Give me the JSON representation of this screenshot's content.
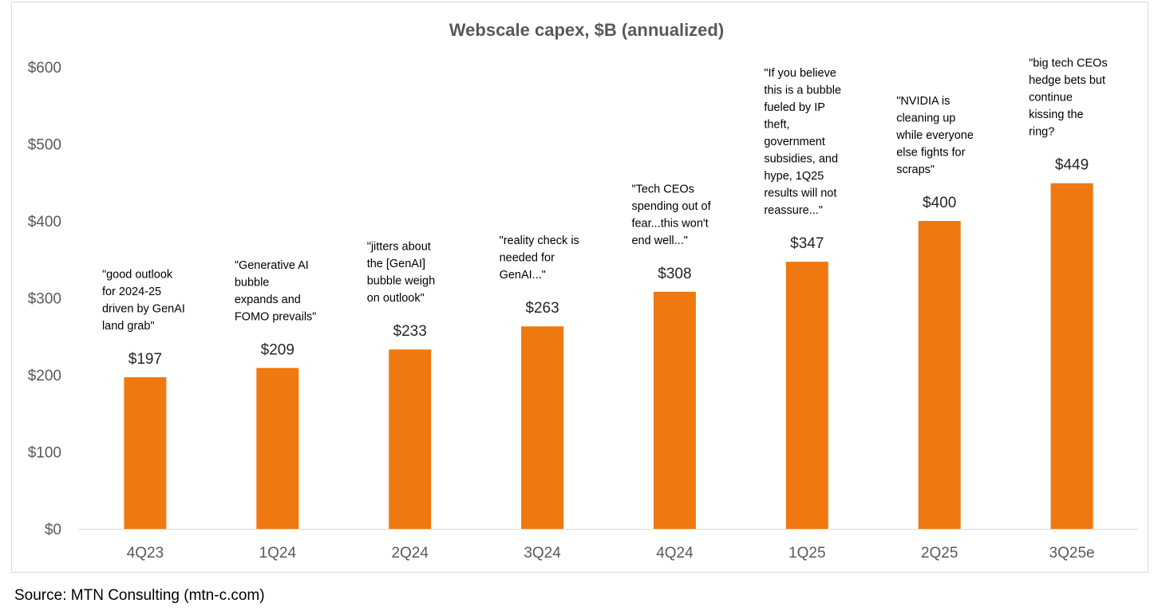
{
  "chart_data": {
    "type": "bar",
    "title": "Webscale capex, $B (annualized)",
    "categories": [
      "4Q23",
      "1Q24",
      "2Q24",
      "3Q24",
      "4Q24",
      "1Q25",
      "2Q25",
      "3Q25e"
    ],
    "values": [
      197,
      209,
      233,
      263,
      308,
      347,
      400,
      449
    ],
    "value_labels": [
      "$197",
      "$209",
      "$233",
      "$263",
      "$308",
      "$347",
      "$400",
      "$449"
    ],
    "ylim": [
      0,
      600
    ],
    "yticks": [
      0,
      100,
      200,
      300,
      400,
      500,
      600
    ],
    "ytick_labels": [
      "$0",
      "$100",
      "$200",
      "$300",
      "$400",
      "$500",
      "$600"
    ],
    "xlabel": "",
    "ylabel": "",
    "grid": false,
    "legend": "none",
    "bar_color": "#f07810",
    "annotations": [
      [
        "\"good outlook",
        "for 2024-25",
        "driven by GenAI",
        "land grab\""
      ],
      [
        "\"Generative AI",
        "bubble",
        "expands and",
        "FOMO prevails\""
      ],
      [
        "\"jitters about",
        "the [GenAI]",
        "bubble weigh",
        "on outlook\""
      ],
      [
        "\"reality check is",
        "needed for",
        "GenAI...\""
      ],
      [
        "\"Tech CEOs",
        "spending out of",
        "fear...this won't",
        "end well...\""
      ],
      [
        "\"If you believe",
        "this is a bubble",
        "fueled by IP",
        "theft,",
        "government",
        "subsidies, and",
        "hype, 1Q25",
        "results will not",
        "reassure...\""
      ],
      [
        "\"NVIDIA is",
        "cleaning up",
        "while everyone",
        "else fights for",
        "scraps\""
      ],
      [
        "\"big tech CEOs",
        "hedge bets but",
        "continue",
        "kissing the",
        "ring?"
      ]
    ]
  },
  "source": "Source: MTN Consulting (mtn-c.com)"
}
